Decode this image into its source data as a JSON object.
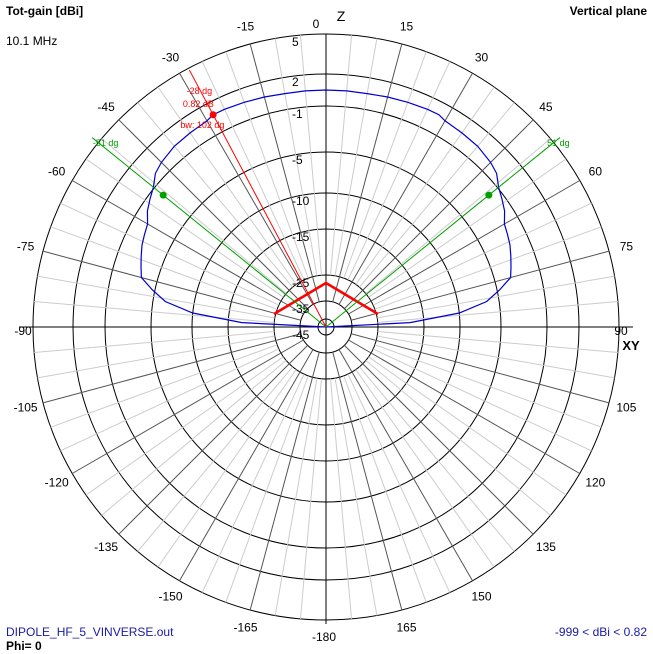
{
  "header": {
    "title": "Tot-gain [dBi]",
    "plane": "Vertical plane",
    "frequency": "10.1 MHz"
  },
  "footer": {
    "filename": "DIPOLE_HF_5_VINVERSE.out",
    "phi": "Phi= 0",
    "range": "-999 < dBi < 0.82"
  },
  "axes": {
    "top": "Z",
    "right": "XY"
  },
  "colors": {
    "pattern": "#0000cc",
    "peak_marker": "#ff0000",
    "beamwidth_marker": "#00a000",
    "antenna": "#ff0000",
    "grid": "#000000",
    "tick_text": "#000000"
  },
  "chart_data": {
    "type": "polar",
    "radial_unit": "dBi",
    "radial_tick_labels": [
      "5",
      "2",
      "-1",
      "-5",
      "-10",
      "-15",
      "-25",
      "-35",
      "-45"
    ],
    "radial_tick_values": [
      5,
      2,
      -1,
      -5,
      -10,
      -15,
      -25,
      -35,
      -45
    ],
    "angle_tick_labels": [
      "0",
      "15",
      "30",
      "45",
      "60",
      "75",
      "90",
      "105",
      "120",
      "135",
      "150",
      "165",
      "-180",
      "-165",
      "-150",
      "-135",
      "-120",
      "-105",
      "-90",
      "-75",
      "-60",
      "-45",
      "-30",
      "-15"
    ],
    "angle_tick_values": [
      0,
      15,
      30,
      45,
      60,
      75,
      90,
      105,
      120,
      135,
      150,
      165,
      180,
      195,
      210,
      225,
      240,
      255,
      270,
      285,
      300,
      315,
      330,
      345
    ],
    "series": [
      {
        "angles_deg": [
          -90,
          -87,
          -84,
          -81,
          -78,
          -75,
          -72,
          -69,
          -66,
          -63,
          -60,
          -57,
          -54,
          -51,
          -48,
          -45,
          -40,
          -35,
          -30,
          -28,
          -25,
          -20,
          -15,
          -10,
          -5,
          0,
          5,
          10,
          15,
          20,
          25,
          28,
          30,
          35,
          40,
          45,
          48,
          51,
          54,
          57,
          60,
          63,
          66,
          69,
          72,
          75,
          78,
          81,
          84,
          87,
          90
        ],
        "gain_dbi": [
          -45,
          -18,
          -10,
          -6.5,
          -4.8,
          -3.6,
          -3.3,
          -3.0,
          -2.7,
          -2.5,
          -2.3,
          -1.7,
          -1.3,
          -0.9,
          -0.2,
          0.1,
          0.4,
          0.5,
          0.6,
          0.82,
          0.8,
          0.7,
          0.6,
          0.5,
          0.5,
          0.5,
          0.5,
          0.5,
          0.6,
          0.7,
          0.8,
          0.82,
          0.6,
          0.5,
          0.4,
          0.1,
          -0.2,
          -0.9,
          -1.3,
          -1.7,
          -2.3,
          -2.5,
          -2.7,
          -3.0,
          -3.3,
          -3.6,
          -4.8,
          -6.5,
          -10,
          -18,
          -45
        ]
      }
    ],
    "peak": {
      "angle_deg": -28,
      "gain_dbi": 0.82,
      "label_angle": "-28 dg",
      "label_gain": "0.82 dB",
      "label_bw": "bw: 102 dg"
    },
    "beamwidth_markers": [
      {
        "angle_deg": -51,
        "gain_dbi": -2.0,
        "label": "-51 dg"
      },
      {
        "angle_deg": 51,
        "gain_dbi": -2.0,
        "label": "51 dg"
      }
    ],
    "antenna_shape": "inverted-V"
  }
}
